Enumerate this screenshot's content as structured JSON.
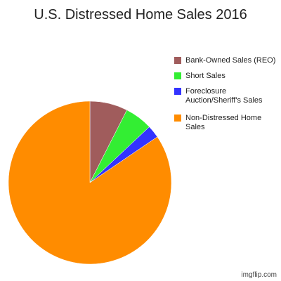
{
  "chart_data": {
    "type": "pie",
    "title": "U.S. Distressed Home Sales 2016",
    "series": [
      {
        "name": "Bank-Owned Sales (REO)",
        "value": 7.5,
        "color": "#a05c5c"
      },
      {
        "name": "Short Sales",
        "value": 5.5,
        "color": "#33ee33"
      },
      {
        "name": "Foreclosure Auction/Sheriff's Sales",
        "value": 2.5,
        "color": "#3333ff"
      },
      {
        "name": "Non-Distressed Home Sales",
        "value": 84.5,
        "color": "#ff8c00"
      }
    ],
    "legend_position": "right"
  },
  "watermark": "imgflip.com"
}
